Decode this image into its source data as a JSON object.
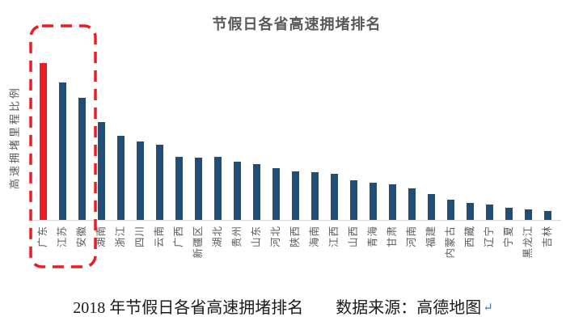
{
  "figure": {
    "title": "节假日各省高速拥堵排名",
    "y_axis_label": "高速拥堵里程比例",
    "caption_text": "2018 年节假日各省高速拥堵排名　　数据来源：高德地图",
    "paragraph_mark": "↵"
  },
  "colors": {
    "highlight_red": "#ed1b23",
    "bar_blue": "#1f4e79",
    "axis_line_gray": "#d9d9d9",
    "label_gray": "#595959",
    "caption_black": "#1a1a1a",
    "paragraph_mark_blue": "#3b7bbe"
  },
  "chart_data": {
    "type": "bar",
    "title": "节假日各省高速拥堵排名",
    "xlabel": "",
    "ylabel": "高速拥堵里程比例",
    "categories": [
      "广东",
      "江苏",
      "安徽",
      "湖南",
      "浙江",
      "四川",
      "云南",
      "广西",
      "新疆区",
      "湖北",
      "贵州",
      "山东",
      "河北",
      "陕西",
      "海南",
      "江西",
      "山西",
      "青海",
      "甘肃",
      "河南",
      "福建",
      "内蒙古",
      "西藏",
      "辽宁",
      "宁夏",
      "黑龙江",
      "吉林"
    ],
    "values": [
      100,
      87.6,
      77.8,
      62.4,
      53.6,
      50.0,
      47.9,
      40.2,
      39.7,
      40.2,
      37.1,
      35.6,
      33.0,
      30.9,
      30.4,
      29.4,
      25.3,
      23.7,
      22.7,
      20.1,
      16.5,
      12.9,
      10.8,
      9.8,
      7.7,
      6.7,
      5.7
    ],
    "value_note": "no numeric axis shown in source; values are relative bar heights with tallest bar (广东) = 100",
    "highlighted_index": 0,
    "highlighted_category": "广东",
    "dashed_box_categories": [
      "广东",
      "江苏",
      "安徽"
    ],
    "legend": "none",
    "grid": false,
    "ylim": [
      0,
      105
    ]
  }
}
